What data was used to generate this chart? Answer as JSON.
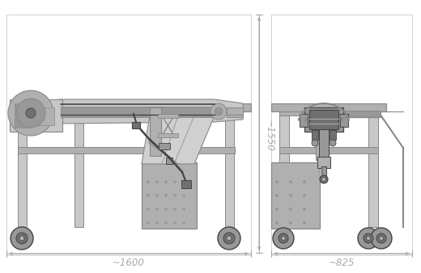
{
  "bg_color": "#ffffff",
  "line_color": "#888888",
  "dark_color": "#444444",
  "gray1": "#c8c8c8",
  "gray2": "#b0b0b0",
  "gray3": "#989898",
  "gray4": "#d0d0d0",
  "gray5": "#707070",
  "dim_color": "#aaaaaa",
  "dot_color": "#cccccc",
  "figsize": [
    5.2,
    3.38
  ],
  "dpi": 100,
  "dim_1600": "~1600",
  "dim_825": "~825",
  "dim_1550": "~1550"
}
